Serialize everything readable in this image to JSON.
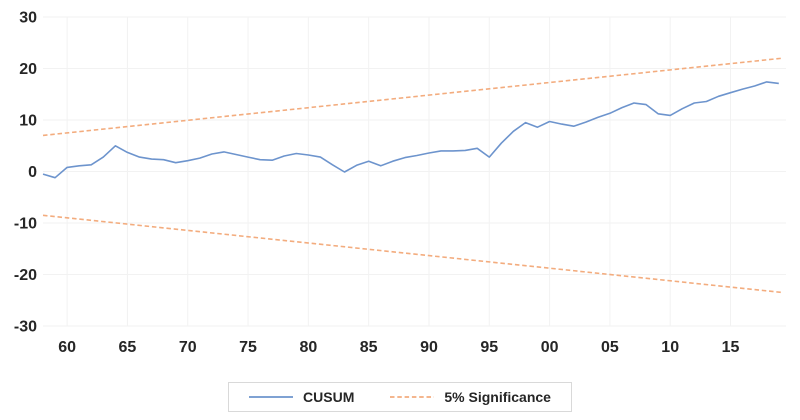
{
  "chart_data": {
    "type": "line",
    "title": "",
    "xlabel": "",
    "ylabel": "",
    "xlim": [
      1958,
      2019.6
    ],
    "ylim": [
      -30,
      30
    ],
    "grid": true,
    "legend_position": "bottom-center",
    "x_ticks": {
      "years": [
        1960,
        1965,
        1970,
        1975,
        1980,
        1985,
        1990,
        1995,
        2000,
        2005,
        2010,
        2015
      ],
      "labels": [
        "60",
        "65",
        "70",
        "75",
        "80",
        "85",
        "90",
        "95",
        "00",
        "05",
        "10",
        "15"
      ]
    },
    "y_ticks": {
      "values": [
        30,
        20,
        10,
        0,
        -10,
        -20,
        -30
      ],
      "labels": [
        "30",
        "20",
        "10",
        "0",
        "-10",
        "-20",
        "-30"
      ]
    },
    "series": [
      {
        "key": "cusum-line",
        "name": "CUSUM",
        "style": "solid",
        "color": "#6D94CD",
        "x_start": 1958,
        "x_step": 1,
        "values": [
          -0.5,
          -1.2,
          0.8,
          1.1,
          1.3,
          2.8,
          5.0,
          3.7,
          2.8,
          2.4,
          2.3,
          1.7,
          2.1,
          2.6,
          3.4,
          3.8,
          3.3,
          2.8,
          2.3,
          2.2,
          3.0,
          3.5,
          3.2,
          2.8,
          1.3,
          -0.1,
          1.2,
          2.0,
          1.1,
          2.0,
          2.7,
          3.1,
          3.6,
          4.0,
          4.0,
          4.1,
          4.5,
          2.8,
          5.5,
          7.8,
          9.5,
          8.6,
          9.7,
          9.2,
          8.8,
          9.6,
          10.5,
          11.3,
          12.4,
          13.3,
          13.0,
          11.2,
          10.9,
          12.2,
          13.3,
          13.6,
          14.6,
          15.3,
          16.0,
          16.6,
          17.4,
          17.1
        ]
      },
      {
        "key": "significance-upper-line",
        "name": "5% Significance (upper bound)",
        "style": "dashed",
        "color": "#F3AC7E",
        "x": [
          1958,
          2019.3
        ],
        "values": [
          7.0,
          22.0
        ]
      },
      {
        "key": "significance-lower-line",
        "name": "5% Significance (lower bound)",
        "style": "dashed",
        "color": "#F3AC7E",
        "x": [
          1958,
          2019.3
        ],
        "values": [
          -8.5,
          -23.5
        ]
      }
    ],
    "legend": [
      {
        "label": "CUSUM",
        "color": "#6D94CD",
        "style": "solid"
      },
      {
        "label": "5% Significance",
        "color": "#F3AC7E",
        "style": "dashed"
      }
    ]
  },
  "colors": {
    "background": "#FFFFFF",
    "grid": "#F2F2F2",
    "tick_text": "#262626",
    "legend_border": "#D9D9D9"
  }
}
